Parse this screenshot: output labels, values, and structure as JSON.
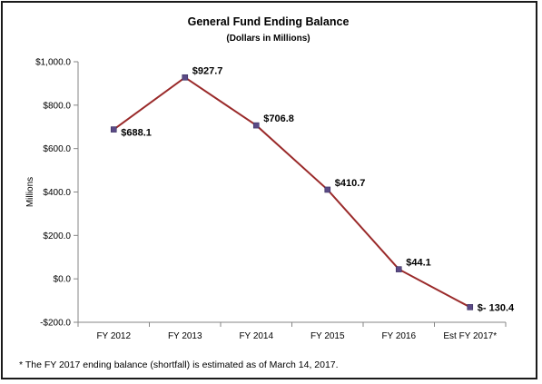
{
  "chart_data": {
    "type": "line",
    "title": "General Fund Ending Balance",
    "subtitle": "(Dollars in Millions)",
    "ylabel": "Millions",
    "xlabel": "",
    "categories": [
      "FY 2012",
      "FY 2013",
      "FY 2014",
      "FY 2015",
      "FY 2016",
      "Est FY 2017*"
    ],
    "series": [
      {
        "values": [
          688.1,
          927.7,
          706.8,
          410.7,
          44.1,
          -130.4
        ],
        "data_labels": [
          "$688.1",
          "$927.7",
          "$706.8",
          "$410.7",
          "$44.1",
          "$- 130.4"
        ],
        "line_color": "#9a2a2a",
        "marker_color": "#5b4a86"
      }
    ],
    "ylim": [
      -200,
      1000
    ],
    "yticks": [
      -200,
      0,
      200,
      400,
      600,
      800,
      1000
    ],
    "ytick_labels": [
      "-$200.0",
      "$0.0",
      "$200.0",
      "$400.0",
      "$600.0",
      "$800.0",
      "$1,000.0"
    ],
    "grid": false,
    "legend": "none"
  },
  "footnote": "* The FY 2017 ending  balance (shortfall) is estimated as of March 14, 2017."
}
